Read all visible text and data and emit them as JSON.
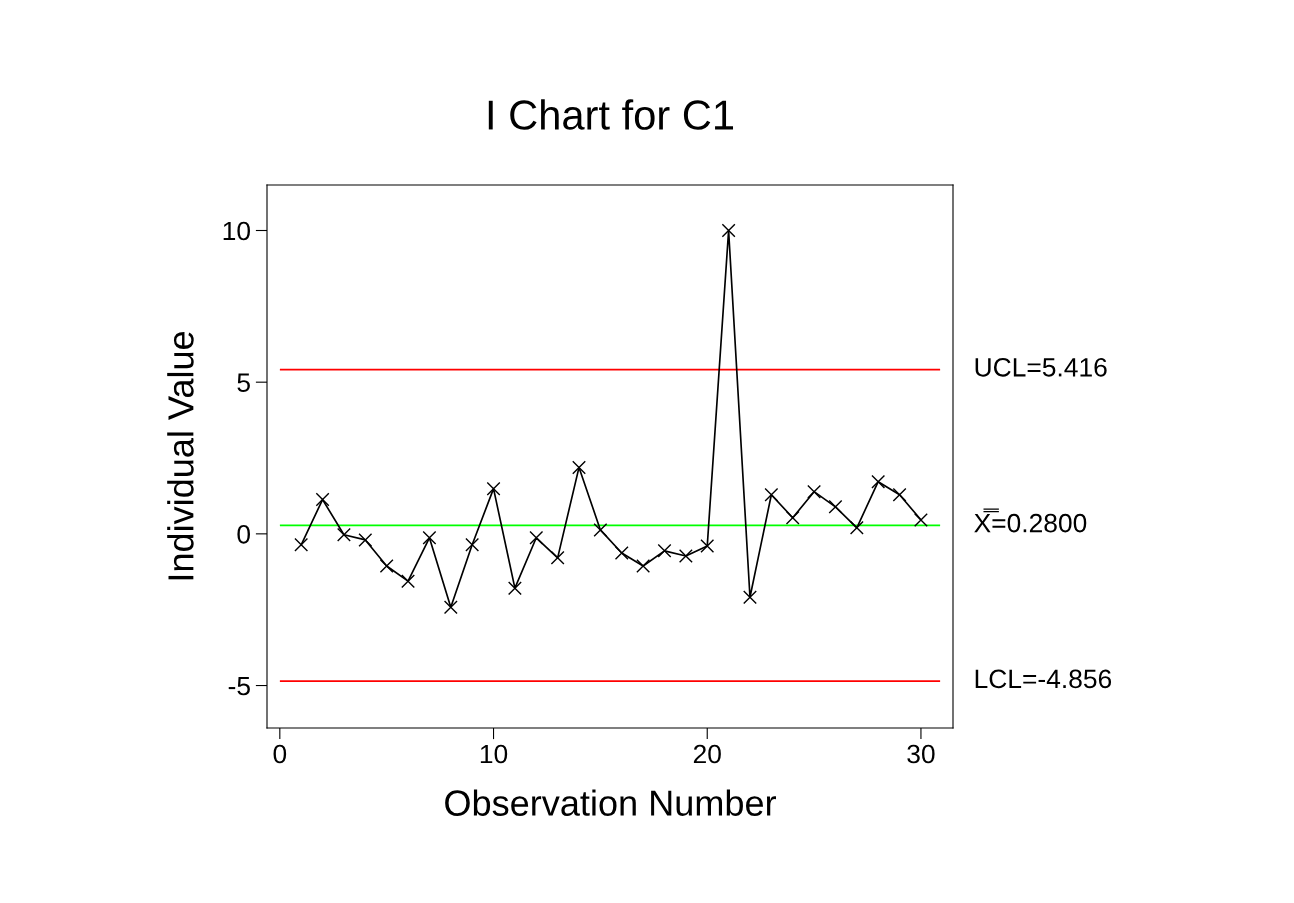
{
  "chart_data": {
    "type": "line",
    "title": "I Chart for C1",
    "xlabel": "Observation Number",
    "ylabel": "Individual Value",
    "x": [
      1,
      2,
      3,
      4,
      5,
      6,
      7,
      8,
      9,
      10,
      11,
      12,
      13,
      14,
      15,
      16,
      17,
      18,
      19,
      20,
      21,
      22,
      23,
      24,
      25,
      26,
      27,
      28,
      29,
      30
    ],
    "series": [
      {
        "color": "#000000",
        "values": [
          -0.36,
          1.13,
          -0.03,
          -0.2,
          -1.06,
          -1.56,
          -0.13,
          -2.42,
          -0.36,
          1.49,
          -1.79,
          -0.13,
          -0.79,
          2.19,
          0.13,
          -0.63,
          -1.06,
          -0.56,
          -0.73,
          -0.4,
          10,
          -2.09,
          1.29,
          0.53,
          1.39,
          0.89,
          0.2,
          1.72,
          1.29,
          0.46
        ]
      }
    ],
    "marker": "cross",
    "line_style": "solid",
    "xlim": [
      -0.6,
      31.5
    ],
    "ylim": [
      -6.4,
      11.5
    ],
    "xticks": [
      0,
      10,
      20,
      30
    ],
    "yticks": [
      -5,
      0,
      5,
      10
    ],
    "grid": false,
    "legend": false,
    "ref_lines": [
      {
        "axis": "y",
        "value": 5.416,
        "label": "UCL=5.416",
        "color": "#ff0000"
      },
      {
        "axis": "y",
        "value": 0.28,
        "label": "X̿=0.2800",
        "color": "#00ff00"
      },
      {
        "axis": "y",
        "value": -4.856,
        "label": "LCL=-4.856",
        "color": "#ff0000"
      }
    ]
  }
}
